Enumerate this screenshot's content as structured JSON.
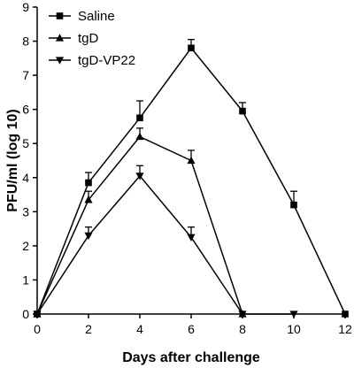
{
  "chart_data": {
    "type": "line",
    "xlabel": "Days after challenge",
    "ylabel": "PFU/ml (log 10)",
    "xlim": [
      0,
      12
    ],
    "ylim": [
      0,
      9
    ],
    "xticks": [
      0,
      2,
      4,
      6,
      8,
      10,
      12
    ],
    "yticks": [
      0,
      1,
      2,
      3,
      4,
      5,
      6,
      7,
      8,
      9
    ],
    "grid": false,
    "legend_position": "top-left",
    "series": [
      {
        "name": "Saline",
        "marker": "square",
        "x": [
          0,
          2,
          4,
          6,
          8,
          10,
          12
        ],
        "y": [
          0,
          3.85,
          5.75,
          7.8,
          5.95,
          3.2,
          0
        ],
        "error": [
          0,
          0.3,
          0.5,
          0.25,
          0.25,
          0.4,
          0
        ]
      },
      {
        "name": "tgD",
        "marker": "triangle-up",
        "x": [
          0,
          2,
          4,
          6,
          8
        ],
        "y": [
          0,
          3.35,
          5.2,
          4.5,
          0
        ],
        "error": [
          0,
          0.25,
          0.25,
          0.3,
          0
        ]
      },
      {
        "name": "tgD-VP22",
        "marker": "triangle-down",
        "x": [
          0,
          2,
          4,
          6,
          8,
          10
        ],
        "y": [
          0,
          2.3,
          4.05,
          2.25,
          0,
          0
        ],
        "error": [
          0,
          0.25,
          0.3,
          0.3,
          0,
          0
        ]
      }
    ]
  }
}
